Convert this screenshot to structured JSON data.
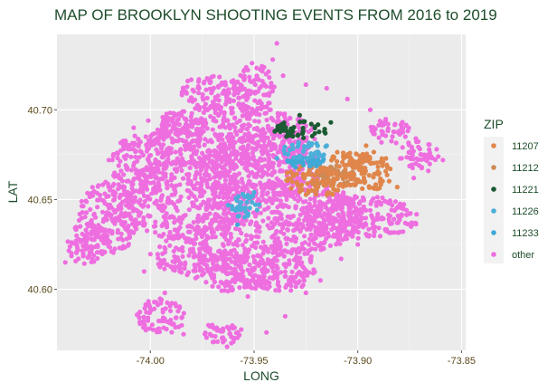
{
  "chart_data": {
    "type": "scatter",
    "title": "MAP OF BROOKLYN SHOOTING EVENTS FROM 2016 to 2019",
    "xlabel": "LONG",
    "ylabel": "LAT",
    "xlim": [
      -74.045,
      -73.848
    ],
    "ylim": [
      40.566,
      40.742
    ],
    "xticks": [
      -74.0,
      -73.95,
      -73.9,
      -73.85
    ],
    "xtick_labels": [
      "-74.00",
      "-73.95",
      "-73.90",
      "-73.85"
    ],
    "yticks": [
      40.6,
      40.65,
      40.7
    ],
    "ytick_labels": [
      "40.60",
      "40.65",
      "40.70"
    ],
    "grid": true,
    "legend_position": "right",
    "legend_title": "ZIP",
    "series": [
      {
        "name": "11207",
        "color": "#e0864b",
        "regions": [
          [
            -73.918,
            40.661,
            0.018,
            0.009
          ],
          [
            -73.895,
            40.666,
            0.012,
            0.011
          ],
          [
            -73.905,
            40.673,
            0.01,
            0.004
          ]
        ],
        "points": [
          [
            -73.922,
            40.668
          ],
          [
            -73.907,
            40.676
          ],
          [
            -73.89,
            40.664
          ],
          [
            -73.881,
            40.657
          ],
          [
            -73.912,
            40.653
          ],
          [
            -73.896,
            40.68
          ]
        ]
      },
      {
        "name": "11212",
        "color": "#cd8a55",
        "regions": [
          [
            -73.913,
            40.663,
            0.014,
            0.006
          ]
        ],
        "points": [
          [
            -73.926,
            40.662
          ],
          [
            -73.9,
            40.66
          ]
        ]
      },
      {
        "name": "11221",
        "color": "#1c5a34",
        "regions": [
          [
            -73.927,
            40.689,
            0.014,
            0.005
          ]
        ],
        "points": [
          [
            -73.94,
            40.688
          ],
          [
            -73.913,
            40.693
          ],
          [
            -73.928,
            40.697
          ]
        ]
      },
      {
        "name": "11226",
        "color": "#4bafd9",
        "regions": [
          [
            -73.955,
            40.647,
            0.008,
            0.007
          ],
          [
            -73.925,
            40.677,
            0.012,
            0.005
          ]
        ],
        "points": [
          [
            -73.95,
            40.654
          ],
          [
            -73.915,
            40.68
          ],
          [
            -73.939,
            40.673
          ]
        ]
      },
      {
        "name": "11233",
        "color": "#3fa9d6",
        "regions": [
          [
            -73.925,
            40.671,
            0.01,
            0.003
          ]
        ],
        "points": [
          [
            -73.958,
            40.636
          ],
          [
            -73.93,
            40.668
          ]
        ]
      },
      {
        "name": "other",
        "color": "#ee6ee0",
        "regions": [
          [
            -73.96,
            40.685,
            0.04,
            0.018
          ],
          [
            -73.945,
            40.668,
            0.03,
            0.018
          ],
          [
            -73.935,
            40.64,
            0.04,
            0.02
          ],
          [
            -73.9,
            40.64,
            0.03,
            0.012
          ],
          [
            -73.985,
            40.65,
            0.03,
            0.022
          ],
          [
            -73.98,
            40.62,
            0.02,
            0.012
          ],
          [
            -73.96,
            40.61,
            0.02,
            0.012
          ],
          [
            -73.94,
            40.612,
            0.02,
            0.014
          ],
          [
            -73.985,
            40.69,
            0.012,
            0.01
          ],
          [
            -73.97,
            40.71,
            0.015,
            0.01
          ],
          [
            -73.95,
            40.712,
            0.01,
            0.014
          ],
          [
            -73.87,
            40.675,
            0.01,
            0.008
          ],
          [
            -73.885,
            40.688,
            0.01,
            0.007
          ],
          [
            -74.005,
            40.67,
            0.014,
            0.016
          ],
          [
            -74.02,
            40.64,
            0.015,
            0.02
          ],
          [
            -74.03,
            40.625,
            0.01,
            0.012
          ],
          [
            -73.995,
            40.585,
            0.012,
            0.01
          ],
          [
            -73.965,
            40.575,
            0.01,
            0.006
          ]
        ],
        "points": [
          [
            -73.939,
            40.737
          ],
          [
            -73.941,
            40.728
          ],
          [
            -73.951,
            40.726
          ],
          [
            -73.946,
            40.716
          ],
          [
            -73.936,
            40.719
          ],
          [
            -73.925,
            40.714
          ],
          [
            -73.915,
            40.712
          ],
          [
            -73.905,
            40.706
          ],
          [
            -73.894,
            40.7
          ],
          [
            -73.882,
            40.692
          ],
          [
            -73.872,
            40.684
          ],
          [
            -73.862,
            40.678
          ],
          [
            -73.859,
            40.672
          ],
          [
            -73.866,
            40.666
          ],
          [
            -73.873,
            40.662
          ],
          [
            -74.012,
            40.68
          ],
          [
            -74.016,
            40.676
          ],
          [
            -74.02,
            40.672
          ],
          [
            -74.008,
            40.69
          ],
          [
            -74.001,
            40.694
          ],
          [
            -74.024,
            40.65
          ],
          [
            -74.031,
            40.633
          ],
          [
            -74.038,
            40.62
          ],
          [
            -74.041,
            40.615
          ],
          [
            -74.027,
            40.642
          ],
          [
            -74.013,
            40.624
          ],
          [
            -74.003,
            40.61
          ],
          [
            -73.993,
            40.598
          ],
          [
            -73.988,
            40.592
          ],
          [
            -73.984,
            40.575
          ],
          [
            -73.972,
            40.58
          ],
          [
            -73.965,
            40.577
          ],
          [
            -73.963,
            40.568
          ],
          [
            -73.958,
            40.573
          ],
          [
            -73.944,
            40.576
          ],
          [
            -73.935,
            40.585
          ],
          [
            -73.925,
            40.598
          ],
          [
            -73.918,
            40.605
          ],
          [
            -73.908,
            40.617
          ],
          [
            -73.9,
            40.625
          ],
          [
            -73.953,
            40.596
          ],
          [
            -73.957,
            40.601
          ],
          [
            -73.948,
            40.607
          ],
          [
            -73.966,
            40.604
          ],
          [
            -73.976,
            40.612
          ],
          [
            -73.914,
            40.64
          ],
          [
            -73.905,
            40.632
          ],
          [
            -73.894,
            40.644
          ],
          [
            -73.885,
            40.648
          ],
          [
            -73.881,
            40.637
          ]
        ]
      }
    ]
  }
}
